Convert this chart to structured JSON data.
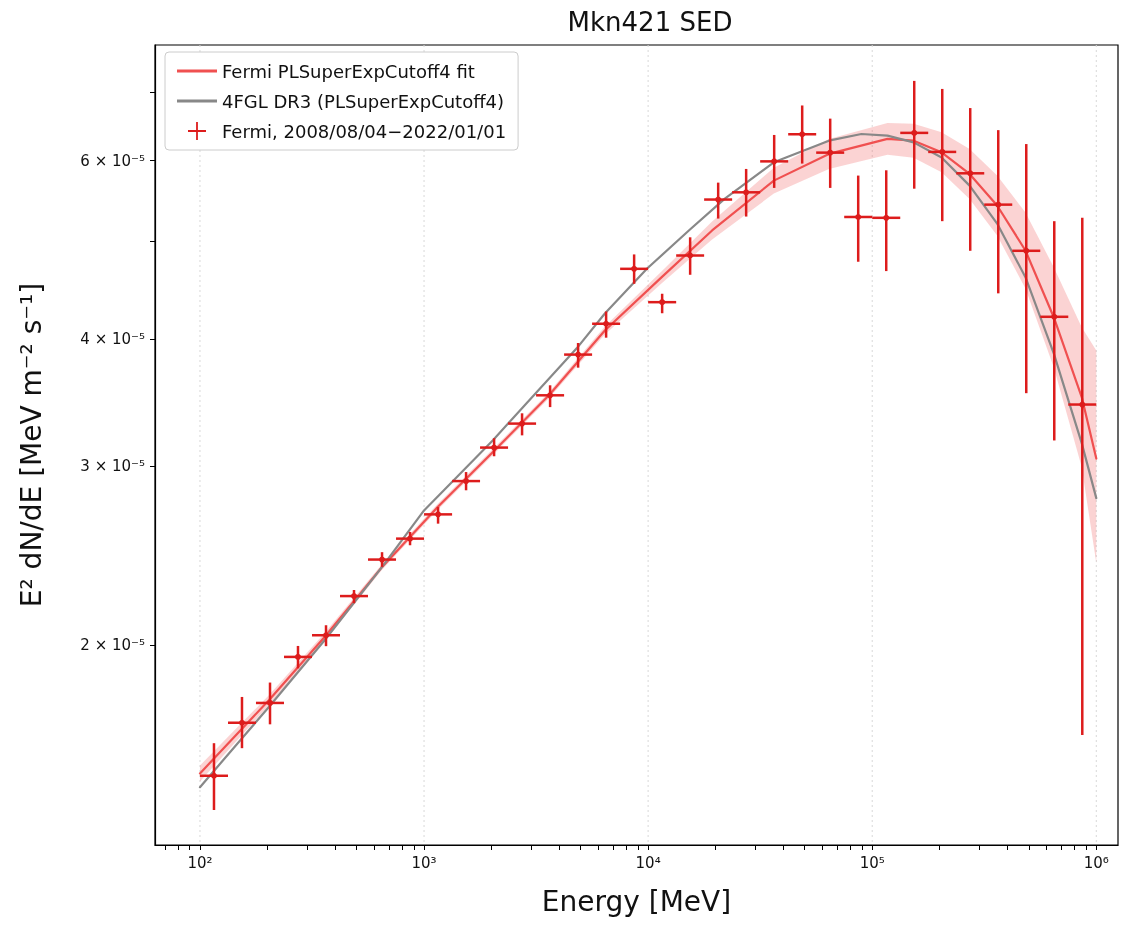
{
  "chart_data": {
    "type": "scatter",
    "title": "Mkn421 SED",
    "xlabel": "Energy [MeV]",
    "ylabel": "E² dN/dE [MeV m⁻² s⁻¹]",
    "log": "xy",
    "grid": "x",
    "legend": "top left",
    "xlim": [
      63,
      1250000
    ],
    "ylim": [
      1.27e-05,
      7.8e-05
    ],
    "xticks": [
      {
        "value": 70,
        "label": null
      },
      {
        "value": 80,
        "label": null
      },
      {
        "value": 90,
        "label": null
      },
      {
        "value": 100,
        "label": "10²"
      },
      {
        "value": 200,
        "label": null
      },
      {
        "value": 300,
        "label": null
      },
      {
        "value": 400,
        "label": null
      },
      {
        "value": 500,
        "label": null
      },
      {
        "value": 600,
        "label": null
      },
      {
        "value": 700,
        "label": null
      },
      {
        "value": 800,
        "label": null
      },
      {
        "value": 900,
        "label": null
      },
      {
        "value": 1000,
        "label": "10³"
      },
      {
        "value": 2000,
        "label": null
      },
      {
        "value": 3000,
        "label": null
      },
      {
        "value": 4000,
        "label": null
      },
      {
        "value": 5000,
        "label": null
      },
      {
        "value": 6000,
        "label": null
      },
      {
        "value": 7000,
        "label": null
      },
      {
        "value": 8000,
        "label": null
      },
      {
        "value": 9000,
        "label": null
      },
      {
        "value": 10000,
        "label": "10⁴"
      },
      {
        "value": 20000,
        "label": null
      },
      {
        "value": 30000,
        "label": null
      },
      {
        "value": 40000,
        "label": null
      },
      {
        "value": 50000,
        "label": null
      },
      {
        "value": 60000,
        "label": null
      },
      {
        "value": 70000,
        "label": null
      },
      {
        "value": 80000,
        "label": null
      },
      {
        "value": 90000,
        "label": null
      },
      {
        "value": 100000,
        "label": "10⁵"
      },
      {
        "value": 200000,
        "label": null
      },
      {
        "value": 300000,
        "label": null
      },
      {
        "value": 400000,
        "label": null
      },
      {
        "value": 500000,
        "label": null
      },
      {
        "value": 600000,
        "label": null
      },
      {
        "value": 700000,
        "label": null
      },
      {
        "value": 800000,
        "label": null
      },
      {
        "value": 900000,
        "label": null
      },
      {
        "value": 1000000,
        "label": "10⁶"
      }
    ],
    "yticks": [
      {
        "value": 2e-05,
        "label": "2 × 10⁻⁵"
      },
      {
        "value": 3e-05,
        "label": "3 × 10⁻⁵"
      },
      {
        "value": 4e-05,
        "label": "4 × 10⁻⁵"
      },
      {
        "value": 5e-05,
        "label": null
      },
      {
        "value": 6e-05,
        "label": "6 × 10⁻⁵"
      },
      {
        "value": 7e-05,
        "label": null
      }
    ],
    "series": [
      {
        "type": "line",
        "name": "Fermi PLSuperExpCutoff4 fit",
        "color": "#f05050",
        "x": [
          100,
          203,
          360,
          650,
          1150,
          2030,
          3610,
          6410,
          11500,
          19300,
          36400,
          64100,
          117000,
          153000,
          204000,
          272000,
          361000,
          483000,
          646000,
          861000,
          1000000
        ],
        "values": [
          1.494e-05,
          1.764e-05,
          2.036e-05,
          2.387e-05,
          2.734e-05,
          3.098e-05,
          3.523e-05,
          4.081e-05,
          4.606e-05,
          5.121e-05,
          5.734e-05,
          6.092e-05,
          6.303e-05,
          6.278e-05,
          6.114e-05,
          5.822e-05,
          5.419e-05,
          4.893e-05,
          4.206e-05,
          3.509e-05,
          3.052e-05
        ],
        "lower": [
          1.467e-05,
          1.744e-05,
          2.018e-05,
          2.371e-05,
          2.716e-05,
          3.077e-05,
          3.499e-05,
          4.044e-05,
          4.544e-05,
          5.018e-05,
          5.568e-05,
          5.888e-05,
          6.079e-05,
          6.041e-05,
          5.843e-05,
          5.501e-05,
          5.063e-05,
          4.489e-05,
          3.755e-05,
          2.994e-05,
          2.41e-05
        ],
        "upper": [
          1.521e-05,
          1.784e-05,
          2.055e-05,
          2.403e-05,
          2.753e-05,
          3.119e-05,
          3.547e-05,
          4.118e-05,
          4.669e-05,
          5.226e-05,
          5.905e-05,
          6.303e-05,
          6.536e-05,
          6.525e-05,
          6.398e-05,
          6.161e-05,
          5.8e-05,
          5.333e-05,
          4.711e-05,
          4.112e-05,
          3.9e-05
        ]
      },
      {
        "type": "line",
        "name": "4FGL DR3 (PLSuperExpCutoff4)",
        "color": "#888888",
        "x": [
          100,
          203,
          360,
          650,
          1000,
          2030,
          4800,
          6410,
          9900,
          15200,
          22000,
          36400,
          64100,
          89500,
          117000,
          153000,
          204000,
          272000,
          361000,
          483000,
          646000,
          861000,
          1000000
        ],
        "values": [
          1.448e-05,
          1.737e-05,
          2.021e-05,
          2.387e-05,
          2.713e-05,
          3.182e-05,
          3.919e-05,
          4.241e-05,
          4.697e-05,
          5.121e-05,
          5.505e-05,
          5.977e-05,
          6.278e-05,
          6.374e-05,
          6.35e-05,
          6.254e-05,
          6.044e-05,
          5.669e-05,
          5.202e-05,
          4.606e-05,
          3.874e-05,
          3.161e-05,
          2.79e-05
        ]
      },
      {
        "name": "Fermi, 2008/08/04−2022/01/01",
        "color": "#dd1c1c",
        "marker": "circle",
        "x": [
          115.5,
          154,
          205.4,
          273.8,
          365.2,
          486.9,
          649.4,
          865.9,
          1155,
          1540,
          2054,
          2738,
          3652,
          4870,
          6494,
          8660,
          11550,
          15400,
          20540,
          27380,
          36520,
          48700,
          64940,
          86600,
          115500,
          154000,
          205400,
          273800,
          365200,
          487000,
          649400,
          866000
        ],
        "values": [
          1.486e-05,
          1.676e-05,
          1.753e-05,
          1.946e-05,
          2.044e-05,
          2.234e-05,
          2.427e-05,
          2.545e-05,
          2.689e-05,
          2.9e-05,
          3.129e-05,
          3.304e-05,
          3.523e-05,
          3.864e-05,
          4.144e-05,
          4.694e-05,
          4.352e-05,
          4.838e-05,
          5.493e-05,
          5.584e-05,
          5.99e-05,
          6.37e-05,
          6.11e-05,
          5.28e-05,
          5.27e-05,
          6.39e-05,
          6.12e-05,
          5.83e-05,
          5.43e-05,
          4.89e-05,
          4.21e-05,
          3.45e-05
        ],
        "errors": [
          [
            1.375e-05,
            1.6e-05
          ],
          [
            1.582e-05,
            1.777e-05
          ],
          [
            1.67e-05,
            1.836e-05
          ],
          [
            1.896e-05,
            1.995e-05
          ],
          [
            1.994e-05,
            2.091e-05
          ],
          [
            2.198e-05,
            2.265e-05
          ],
          [
            2.387e-05,
            2.468e-05
          ],
          [
            2.507e-05,
            2.584e-05
          ],
          [
            2.633e-05,
            2.734e-05
          ],
          [
            2.84e-05,
            2.96e-05
          ],
          [
            3.068e-05,
            3.196e-05
          ],
          [
            3.217e-05,
            3.382e-05
          ],
          [
            3.43e-05,
            3.604e-05
          ],
          [
            3.751e-05,
            3.967e-05
          ],
          [
            4.015e-05,
            4.261e-05
          ],
          [
            4.537e-05,
            4.85e-05
          ],
          [
            4.244e-05,
            4.436e-05
          ],
          [
            4.631e-05,
            5.042e-05
          ],
          [
            5.261e-05,
            5.708e-05
          ],
          [
            5.285e-05,
            5.888e-05
          ],
          [
            5.64e-05,
            6.36e-05
          ],
          [
            5.96e-05,
            6.8e-05
          ],
          [
            5.64e-05,
            6.6e-05
          ],
          [
            4.77e-05,
            5.8e-05
          ],
          [
            4.67e-05,
            5.87e-05
          ],
          [
            5.63e-05,
            7.19e-05
          ],
          [
            5.23e-05,
            7.06e-05
          ],
          [
            4.89e-05,
            6.76e-05
          ],
          [
            4.44e-05,
            6.43e-05
          ],
          [
            3.54e-05,
            6.23e-05
          ],
          [
            3.18e-05,
            5.23e-05
          ],
          [
            1.63e-05,
            5.27e-05
          ]
        ],
        "xerrors": [
          [
            100,
            133.4
          ],
          [
            133.4,
            177.8
          ],
          [
            177.8,
            237.1
          ],
          [
            237.1,
            316.2
          ],
          [
            316.2,
            421.7
          ],
          [
            421.7,
            562.3
          ],
          [
            562.3,
            749.9
          ],
          [
            749.9,
            1000
          ],
          [
            1000,
            1334
          ],
          [
            1334,
            1778
          ],
          [
            1778,
            2371
          ],
          [
            2371,
            3162
          ],
          [
            3162,
            4217
          ],
          [
            4217,
            5623
          ],
          [
            5623,
            7499
          ],
          [
            7499,
            10000
          ],
          [
            10000,
            13340
          ],
          [
            13340,
            17780
          ],
          [
            17780,
            23710
          ],
          [
            23710,
            31620
          ],
          [
            31620,
            42170
          ],
          [
            42170,
            56230
          ],
          [
            56230,
            74990
          ],
          [
            74990,
            100000
          ],
          [
            100000,
            133400
          ],
          [
            133400,
            177800
          ],
          [
            177800,
            237100
          ],
          [
            237100,
            316200
          ],
          [
            316200,
            421700
          ],
          [
            421700,
            562300
          ],
          [
            562300,
            749900
          ],
          [
            749900,
            1000000
          ]
        ]
      }
    ]
  }
}
